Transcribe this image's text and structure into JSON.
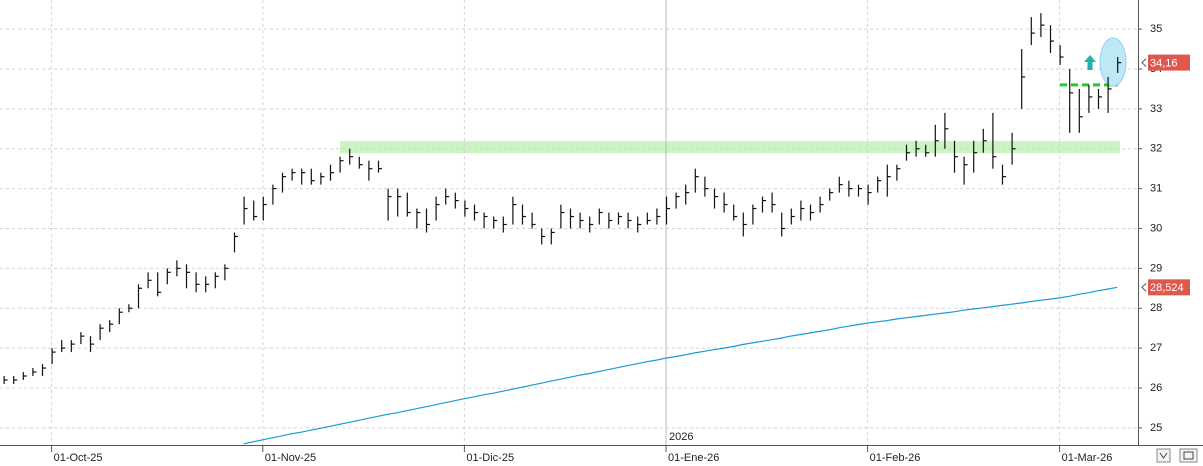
{
  "chart_data": {
    "type": "ohlc",
    "categories": [
      null,
      null,
      null,
      null,
      null,
      "01-Oct-25",
      null,
      null,
      null,
      null,
      null,
      null,
      null,
      null,
      null,
      null,
      null,
      null,
      null,
      null,
      null,
      null,
      null,
      null,
      null,
      null,
      null,
      "01-Nov-25",
      null,
      null,
      null,
      null,
      null,
      null,
      null,
      null,
      null,
      null,
      null,
      null,
      null,
      null,
      null,
      null,
      null,
      null,
      null,
      null,
      "01-Dic-25",
      null,
      null,
      null,
      null,
      null,
      null,
      null,
      null,
      null,
      null,
      null,
      null,
      null,
      null,
      null,
      null,
      null,
      null,
      null,
      null,
      "01-Ene-26",
      null,
      null,
      null,
      null,
      null,
      null,
      null,
      null,
      null,
      null,
      null,
      null,
      null,
      null,
      null,
      null,
      null,
      null,
      null,
      null,
      "01-Feb-26",
      null,
      null,
      null,
      null,
      null,
      null,
      null,
      null,
      null,
      null,
      null,
      null,
      null,
      null,
      null,
      null,
      null,
      null,
      null,
      "01-Mar-26",
      null,
      null,
      null,
      null,
      null,
      null
    ],
    "high": [
      26.3,
      26.3,
      26.4,
      26.5,
      26.6,
      27.0,
      27.2,
      27.2,
      27.4,
      27.3,
      27.6,
      27.7,
      28.0,
      28.1,
      28.6,
      28.9,
      28.9,
      29.0,
      29.2,
      29.1,
      28.9,
      28.8,
      28.9,
      29.1,
      29.9,
      30.8,
      30.7,
      30.8,
      31.1,
      31.4,
      31.5,
      31.5,
      31.5,
      31.4,
      31.6,
      31.8,
      32.0,
      31.8,
      31.7,
      31.7,
      31.0,
      31.0,
      30.9,
      30.5,
      30.5,
      30.8,
      31.0,
      30.9,
      30.7,
      30.6,
      30.4,
      30.3,
      30.3,
      30.8,
      30.6,
      30.4,
      30.0,
      30.0,
      30.6,
      30.5,
      30.4,
      30.3,
      30.5,
      30.4,
      30.4,
      30.4,
      30.3,
      30.4,
      30.5,
      30.8,
      30.9,
      31.1,
      31.5,
      31.3,
      31.0,
      30.9,
      30.6,
      30.4,
      30.6,
      30.8,
      30.9,
      30.4,
      30.5,
      30.7,
      30.6,
      30.8,
      31.0,
      31.3,
      31.2,
      31.1,
      31.1,
      31.3,
      31.6,
      31.6,
      32.1,
      32.2,
      32.1,
      32.6,
      32.9,
      32.2,
      31.8,
      32.2,
      32.5,
      32.9,
      31.6,
      32.4,
      34.5,
      35.3,
      35.4,
      35.1,
      34.6,
      34.0,
      33.5,
      33.6,
      33.5,
      33.8,
      34.3
    ],
    "low": [
      26.1,
      26.1,
      26.2,
      26.3,
      26.3,
      26.6,
      26.9,
      26.9,
      27.1,
      26.9,
      27.2,
      27.4,
      27.6,
      27.9,
      28.0,
      28.5,
      28.3,
      28.6,
      28.8,
      28.5,
      28.4,
      28.4,
      28.5,
      28.7,
      29.4,
      30.1,
      30.2,
      30.2,
      30.6,
      30.9,
      31.2,
      31.1,
      31.1,
      31.1,
      31.2,
      31.4,
      31.6,
      31.5,
      31.2,
      31.4,
      30.2,
      30.3,
      30.3,
      30.0,
      29.9,
      30.2,
      30.6,
      30.5,
      30.3,
      30.2,
      30.0,
      30.0,
      29.9,
      30.1,
      30.1,
      30.0,
      29.6,
      29.6,
      30.0,
      30.0,
      30.0,
      29.9,
      30.1,
      30.0,
      30.1,
      30.0,
      29.9,
      30.1,
      30.1,
      30.1,
      30.5,
      30.6,
      30.9,
      30.8,
      30.5,
      30.4,
      30.2,
      29.8,
      30.1,
      30.4,
      30.4,
      29.8,
      30.1,
      30.2,
      30.2,
      30.4,
      30.7,
      30.9,
      30.8,
      30.8,
      30.6,
      30.9,
      30.8,
      31.2,
      31.7,
      31.8,
      31.8,
      31.8,
      32.0,
      31.4,
      31.1,
      31.4,
      31.9,
      31.5,
      31.1,
      31.6,
      33.0,
      34.6,
      34.8,
      34.4,
      34.1,
      32.4,
      32.4,
      32.9,
      33.0,
      32.9,
      33.9
    ],
    "close": [
      26.2,
      26.2,
      26.3,
      26.4,
      26.5,
      26.9,
      27.0,
      27.1,
      27.3,
      27.1,
      27.5,
      27.6,
      27.9,
      28.0,
      28.5,
      28.7,
      28.4,
      28.9,
      29.0,
      28.9,
      28.6,
      28.6,
      28.8,
      29.0,
      29.8,
      30.5,
      30.3,
      30.6,
      31.0,
      31.3,
      31.4,
      31.4,
      31.2,
      31.3,
      31.4,
      31.7,
      31.8,
      31.6,
      31.5,
      31.5,
      30.8,
      30.8,
      30.4,
      30.4,
      30.1,
      30.6,
      30.8,
      30.7,
      30.5,
      30.4,
      30.3,
      30.2,
      30.1,
      30.6,
      30.3,
      30.1,
      29.8,
      29.9,
      30.4,
      30.3,
      30.2,
      30.1,
      30.4,
      30.2,
      30.3,
      30.2,
      30.1,
      30.2,
      30.3,
      30.5,
      30.8,
      30.9,
      31.3,
      31.0,
      30.8,
      30.6,
      30.3,
      30.1,
      30.5,
      30.7,
      30.6,
      30.0,
      30.3,
      30.5,
      30.4,
      30.6,
      30.9,
      31.1,
      31.0,
      31.0,
      30.9,
      31.2,
      31.3,
      31.5,
      31.9,
      32.0,
      31.9,
      32.2,
      32.5,
      31.8,
      31.6,
      31.9,
      32.2,
      31.8,
      31.3,
      32.0,
      33.8,
      34.9,
      35.1,
      34.7,
      34.3,
      33.4,
      32.8,
      33.3,
      33.3,
      33.5,
      34.16
    ],
    "bar_color": "#111111",
    "moving_average": {
      "color": "#1a9ad6",
      "values": [
        null,
        null,
        null,
        null,
        null,
        null,
        null,
        null,
        null,
        null,
        null,
        null,
        null,
        null,
        null,
        null,
        null,
        null,
        null,
        null,
        null,
        null,
        null,
        null,
        null,
        24.6,
        24.65,
        24.7,
        24.75,
        24.8,
        24.85,
        24.89,
        24.94,
        24.99,
        25.04,
        25.09,
        25.14,
        25.19,
        25.24,
        25.29,
        25.34,
        25.38,
        25.43,
        25.48,
        25.53,
        25.58,
        25.63,
        25.68,
        25.73,
        25.78,
        25.83,
        25.87,
        25.92,
        25.97,
        26.02,
        26.07,
        26.12,
        26.17,
        26.22,
        26.27,
        26.32,
        26.36,
        26.41,
        26.46,
        26.51,
        26.56,
        26.61,
        26.66,
        26.7,
        26.75,
        26.79,
        26.83,
        26.88,
        26.92,
        26.96,
        27.0,
        27.04,
        27.09,
        27.13,
        27.17,
        27.21,
        27.25,
        27.3,
        27.34,
        27.38,
        27.42,
        27.46,
        27.51,
        27.55,
        27.59,
        27.63,
        27.66,
        27.69,
        27.73,
        27.76,
        27.79,
        27.82,
        27.85,
        27.88,
        27.91,
        27.95,
        27.98,
        28.01,
        28.04,
        28.07,
        28.1,
        28.13,
        28.17,
        28.2,
        28.23,
        28.26,
        28.3,
        28.35,
        28.39,
        28.44,
        28.48,
        28.524
      ]
    },
    "price_tags": [
      {
        "value": 34.16,
        "label": "34,16",
        "color": "#e0584c"
      },
      {
        "value": 28.524,
        "label": "28,524",
        "color": "#e0584c"
      }
    ],
    "support_zone": {
      "range": [
        31.89,
        32.19
      ],
      "color": "#c8f5c0"
    },
    "level_line": {
      "value": 33.6,
      "color": "#22cc22"
    },
    "year_label": "2026",
    "ylim": [
      24.57,
      35.73
    ],
    "yticks": [
      25,
      26,
      27,
      28,
      29,
      30,
      31,
      32,
      33,
      34,
      35
    ],
    "grid": true
  }
}
